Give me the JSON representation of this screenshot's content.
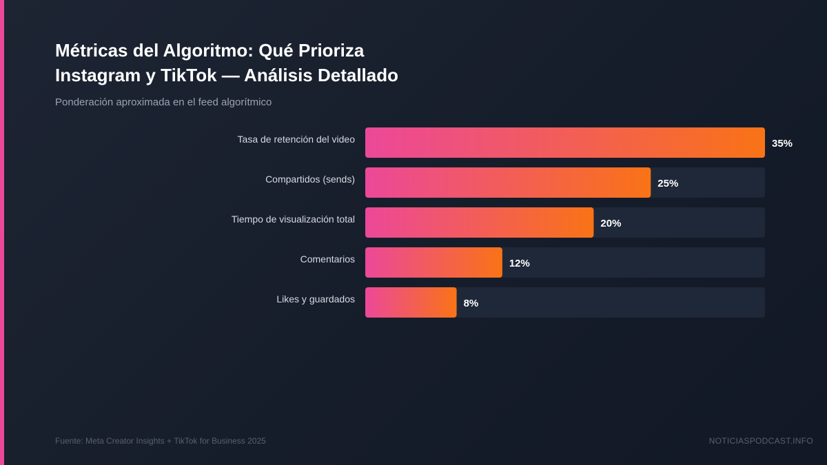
{
  "title_lines": [
    "Métricas del Algoritmo: Qué Prioriza",
    "Instagram y TikTok — Análisis Detallado"
  ],
  "subtitle": "Ponderación aproximada en el feed algorítmico",
  "footer": {
    "source": "Fuente: Meta Creator Insights + TikTok for Business 2025",
    "brand": "NOTICIASPODCAST.INFO"
  },
  "colors": {
    "accent": "#ec4899",
    "bar_gradient_start": "#ec4899",
    "bar_gradient_end": "#f97316",
    "track": "#1f2838"
  },
  "chart_data": {
    "type": "bar",
    "orientation": "horizontal",
    "categories": [
      "Tasa de retención del video",
      "Compartidos (sends)",
      "Tiempo de visualización total",
      "Comentarios",
      "Likes y guardados"
    ],
    "values": [
      35,
      25,
      20,
      12,
      8
    ],
    "value_labels": [
      "35%",
      "25%",
      "20%",
      "12%",
      "8%"
    ],
    "unit": "%",
    "xlim": [
      0,
      35
    ],
    "grid": false,
    "legend": "none"
  }
}
